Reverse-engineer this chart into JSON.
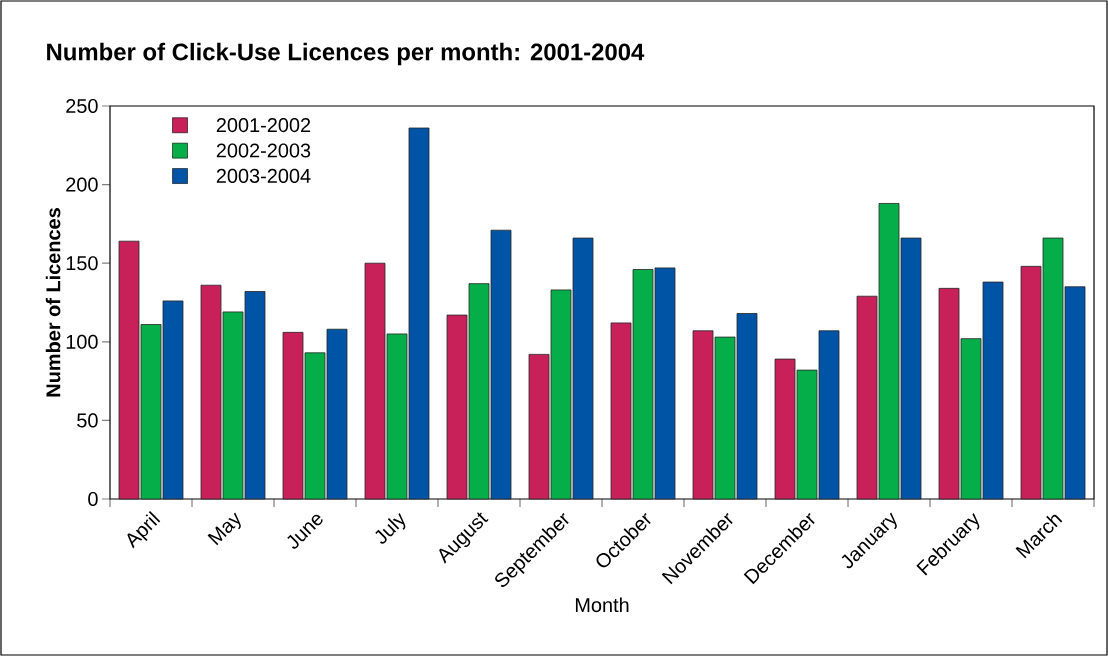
{
  "chart_data": {
    "type": "bar",
    "title": "Number of Click-Use Licences per month: 2001-2004",
    "xlabel": "Month",
    "ylabel": "Number of Licences",
    "categories": [
      "April",
      "May",
      "June",
      "July",
      "August",
      "September",
      "October",
      "November",
      "December",
      "January",
      "February",
      "March"
    ],
    "series": [
      {
        "name": "2001-2002",
        "color": "#c8215a",
        "values": [
          164,
          136,
          106,
          150,
          117,
          92,
          112,
          107,
          89,
          129,
          134,
          148
        ]
      },
      {
        "name": "2002-2003",
        "color": "#06ae49",
        "values": [
          111,
          119,
          93,
          105,
          137,
          133,
          146,
          103,
          82,
          188,
          102,
          166
        ]
      },
      {
        "name": "2003-2004",
        "color": "#0054a6",
        "values": [
          126,
          132,
          108,
          236,
          171,
          166,
          147,
          118,
          107,
          166,
          138,
          135
        ]
      }
    ],
    "ylim": [
      0,
      250
    ],
    "yticks": [
      0,
      50,
      100,
      150,
      200,
      250
    ],
    "legend": "top left",
    "grid": false
  }
}
